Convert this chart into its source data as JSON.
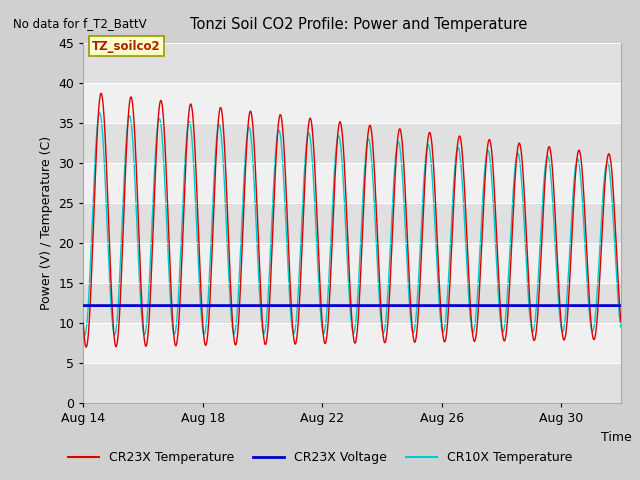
{
  "title": "Tonzi Soil CO2 Profile: Power and Temperature",
  "subtitle": "No data for f_T2_BattV",
  "xlabel": "Time",
  "ylabel": "Power (V) / Temperature (C)",
  "ylim": [
    0,
    45
  ],
  "yticks": [
    0,
    5,
    10,
    15,
    20,
    25,
    30,
    35,
    40,
    45
  ],
  "x_tick_labels": [
    "Aug 14",
    "Aug 18",
    "Aug 22",
    "Aug 26",
    "Aug 30"
  ],
  "x_tick_positions": [
    0,
    4,
    8,
    12,
    16
  ],
  "annotation_label": "TZ_soilco2",
  "fig_bg_color": "#d0d0d0",
  "plot_bg_color": "#f0f0f0",
  "band_light": "#f0f0f0",
  "band_dark": "#e0e0e0",
  "grid_color": "#cccccc",
  "cr23x_temp_color": "#dd0000",
  "cr23x_volt_color": "#0000cc",
  "cr10x_temp_color": "#00cccc",
  "legend_labels": [
    "CR23X Temperature",
    "CR23X Voltage",
    "CR10X Temperature"
  ],
  "legend_colors": [
    "#dd0000",
    "#0000cc",
    "#00cccc"
  ],
  "voltage_value": 12.2,
  "num_days": 18
}
